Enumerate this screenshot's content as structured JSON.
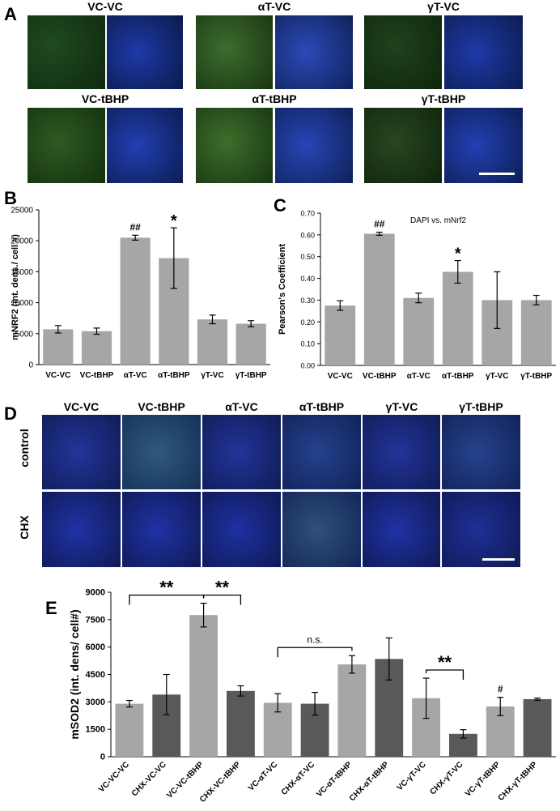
{
  "panels": {
    "A": "A",
    "B": "B",
    "C": "C",
    "D": "D",
    "E": "E"
  },
  "panelA": {
    "titles": [
      "VC-VC",
      "αT-VC",
      "γT-VC",
      "VC-tBHP",
      "αT-tBHP",
      "γT-tBHP"
    ]
  },
  "panelD": {
    "columns": [
      "VC-VC",
      "VC-tBHP",
      "αT-VC",
      "αT-tBHP",
      "γT-VC",
      "γT-tBHP"
    ],
    "rows": [
      "control",
      "CHX"
    ]
  },
  "chart_data": [
    {
      "id": "B",
      "type": "bar",
      "categories": [
        "VC-VC",
        "VC-tBHP",
        "αT-VC",
        "αT-tBHP",
        "γT-VC",
        "γT-tBHP"
      ],
      "values": [
        5700,
        5400,
        20500,
        17200,
        7300,
        6600
      ],
      "errors": [
        600,
        500,
        400,
        4900,
        700,
        500
      ],
      "annotations": [
        "",
        "",
        "##",
        "*",
        "",
        ""
      ],
      "ylabel": "mNRF2 (int. dens./ cell #)",
      "yticks": [
        "0",
        "5000",
        "10000",
        "15000",
        "20000",
        "25000"
      ],
      "ylim": [
        0,
        25000
      ],
      "color": "#a6a6a6"
    },
    {
      "id": "C",
      "type": "bar",
      "title": "DAPI vs. mNrf2",
      "categories": [
        "VC-VC",
        "VC-tBHP",
        "αT-VC",
        "αT-tBHP",
        "γT-VC",
        "γT-tBHP"
      ],
      "values": [
        0.275,
        0.605,
        0.31,
        0.43,
        0.3,
        0.3
      ],
      "errors": [
        0.022,
        0.007,
        0.022,
        0.052,
        0.13,
        0.022
      ],
      "annotations": [
        "",
        "##",
        "",
        "*",
        "",
        ""
      ],
      "ylabel": "Pearson's Coefficient",
      "yticks": [
        "0.00",
        "0.10",
        "0.20",
        "0.30",
        "0.40",
        "0.50",
        "0.60",
        "0.70"
      ],
      "ylim": [
        0,
        0.7
      ],
      "color": "#a6a6a6"
    },
    {
      "id": "E",
      "type": "bar",
      "categories": [
        "VC-VC-VC",
        "CHX-VC-VC",
        "VC-VC-tBHP",
        "CHX-VC-tBHP",
        "VC-αT-VC",
        "CHX-αT-VC",
        "VC-αT-tBHP",
        "CHX-αT-tBHP",
        "VC-γT-VC",
        "CHX-γT-VC",
        "VC-γT-tBHP",
        "CHX-γT-tBHP"
      ],
      "values": [
        2900,
        3400,
        7750,
        3600,
        2950,
        2900,
        5050,
        5350,
        3200,
        1250,
        2750,
        3150
      ],
      "errors": [
        180,
        1100,
        650,
        280,
        500,
        620,
        480,
        1150,
        1100,
        230,
        500,
        60
      ],
      "colors": [
        "#a6a6a6",
        "#595959",
        "#a6a6a6",
        "#595959",
        "#a6a6a6",
        "#595959",
        "#a6a6a6",
        "#595959",
        "#a6a6a6",
        "#595959",
        "#a6a6a6",
        "#595959"
      ],
      "annotations": [
        "",
        "",
        "",
        "",
        "",
        "",
        "",
        "",
        "",
        "",
        "#",
        ""
      ],
      "brackets": [
        {
          "from": 0,
          "to": 2,
          "label": "**"
        },
        {
          "from": 2,
          "to": 3,
          "label": "**"
        },
        {
          "from": 4,
          "to": 6,
          "label": "n.s."
        },
        {
          "from": 8,
          "to": 9,
          "label": "**"
        }
      ],
      "ylabel": "mSOD2 (int. dens/ cell#)",
      "yticks": [
        "0",
        "1500",
        "3000",
        "4500",
        "6000",
        "7500",
        "9000"
      ],
      "ylim": [
        0,
        9000
      ]
    }
  ]
}
